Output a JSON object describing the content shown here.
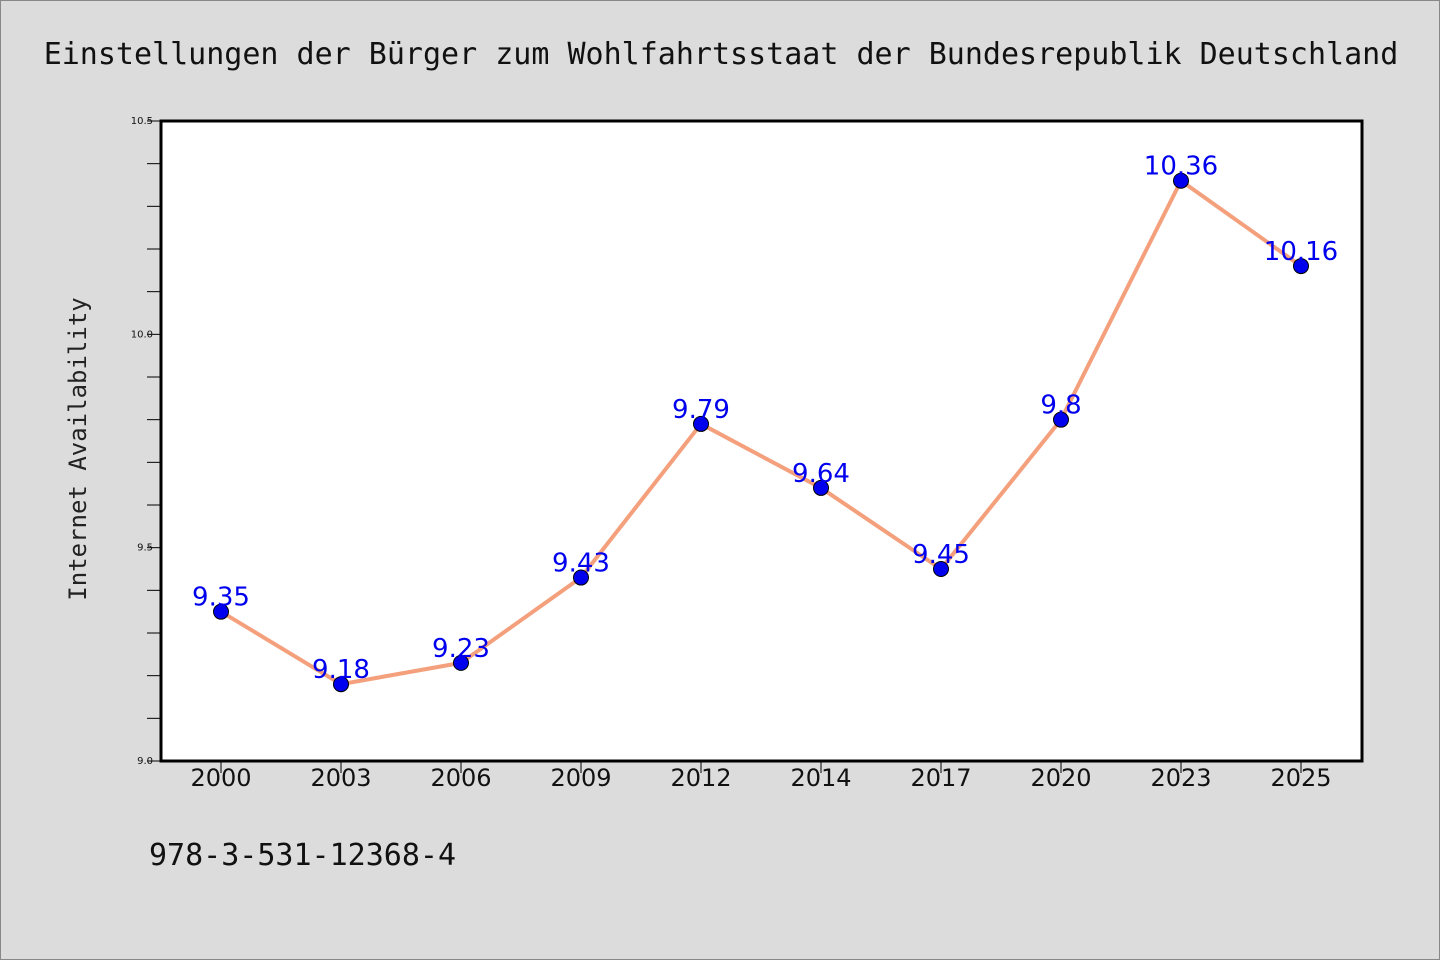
{
  "chart_data": {
    "type": "line",
    "title": "Einstellungen der Bürger zum Wohlfahrtsstaat der Bundesrepublik Deutschland",
    "xlabel": "",
    "ylabel": "Internet Availability",
    "categories": [
      "2000",
      "2003",
      "2006",
      "2009",
      "2012",
      "2014",
      "2017",
      "2020",
      "2023",
      "2025"
    ],
    "series": [
      {
        "values": [
          9.35,
          9.18,
          9.23,
          9.43,
          9.79,
          9.64,
          9.45,
          9.8,
          10.36,
          10.16
        ],
        "data_labels": [
          "9.35",
          "9.18",
          "9.23",
          "9.43",
          "9.79",
          "9.64",
          "9.45",
          "9.8",
          "10.36",
          "10.16"
        ]
      }
    ],
    "ylim": [
      9.0,
      10.5
    ],
    "yticks": [
      "9.0",
      "9.5",
      "10.0",
      "10.5"
    ],
    "grid": false,
    "legend": "none",
    "colors": {
      "line": "#f4a07c",
      "marker": "#0000ee",
      "data_label": "#0000ee",
      "plot_background": "#ffffff",
      "page_background": "#dcdcdc"
    }
  },
  "footer": {
    "isbn": "978-3-531-12368-4"
  }
}
